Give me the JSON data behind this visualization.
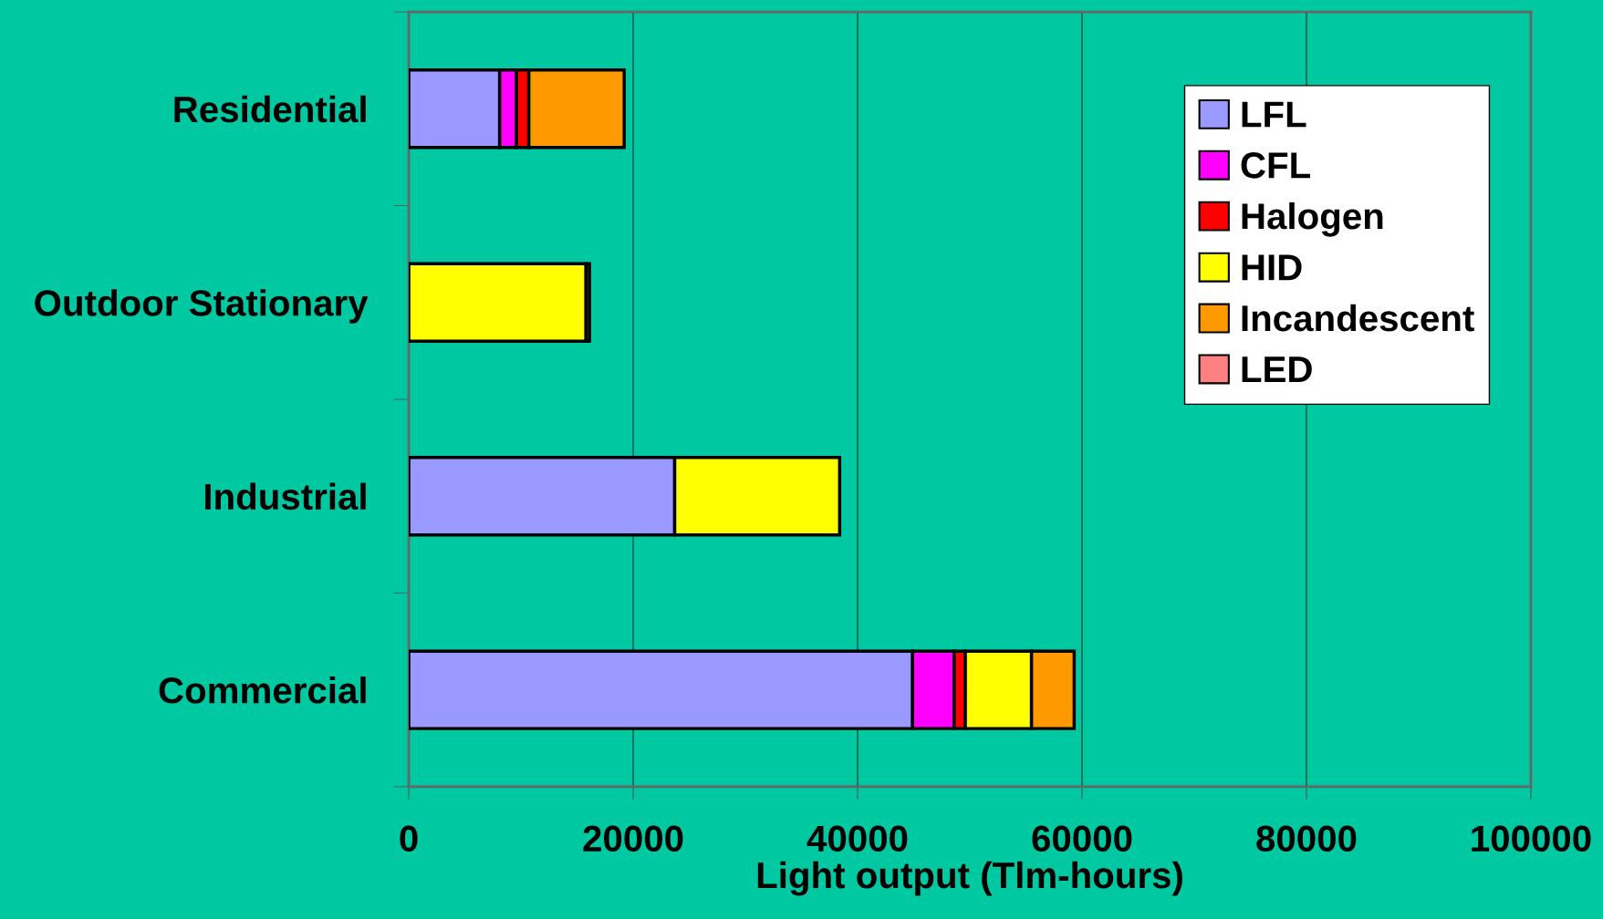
{
  "chart_data": {
    "type": "bar",
    "orientation": "horizontal",
    "stacked": true,
    "categories": [
      "Residential",
      "Outdoor Stationary",
      "Industrial",
      "Commercial"
    ],
    "series": [
      {
        "name": "LFL",
        "color": "#9999ff",
        "values": [
          8100,
          null,
          23700,
          44900
        ]
      },
      {
        "name": "CFL",
        "color": "#ff00ff",
        "values": [
          1500,
          null,
          null,
          3700
        ]
      },
      {
        "name": "Halogen",
        "color": "#ff0000",
        "values": [
          1100,
          null,
          null,
          1000
        ]
      },
      {
        "name": "HID",
        "color": "#ffff00",
        "values": [
          null,
          15800,
          14700,
          5900
        ]
      },
      {
        "name": "Incandescent",
        "color": "#ff9900",
        "values": [
          8500,
          300,
          null,
          3800
        ]
      },
      {
        "name": "LED",
        "color": "#ff8080",
        "values": [
          null,
          null,
          null,
          null
        ]
      }
    ],
    "xlabel": "Light output (Tlm-hours)",
    "xlim": [
      0,
      100000
    ],
    "xticks": [
      0,
      20000,
      40000,
      60000,
      80000,
      100000
    ],
    "grid": "x",
    "legend": "top right"
  }
}
